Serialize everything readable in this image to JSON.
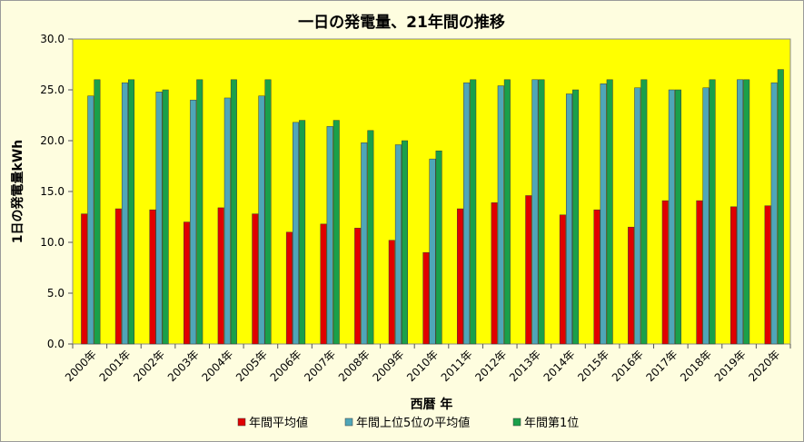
{
  "chart_data": {
    "type": "bar",
    "title": "一日の発電量、21年間の推移",
    "xlabel": "西暦 年",
    "ylabel": "1日の発電量kWh",
    "ylim": [
      0,
      30
    ],
    "yticks": [
      "0.0",
      "5.0",
      "10.0",
      "15.0",
      "20.0",
      "25.0",
      "30.0"
    ],
    "grid": false,
    "legend_position": "bottom",
    "plot_background": "#ffff00",
    "categories": [
      "2000年",
      "2001年",
      "2002年",
      "2003年",
      "2004年",
      "2005年",
      "2006年",
      "2007年",
      "2008年",
      "2009年",
      "2010年",
      "2011年",
      "2012年",
      "2013年",
      "2014年",
      "2015年",
      "2016年",
      "2017年",
      "2018年",
      "2019年",
      "2020年"
    ],
    "series": [
      {
        "name": "年間平均値",
        "color": "#e00000",
        "values": [
          12.8,
          13.3,
          13.2,
          12.0,
          13.4,
          12.8,
          11.0,
          11.8,
          11.4,
          10.2,
          9.0,
          13.3,
          13.9,
          14.6,
          12.7,
          13.2,
          11.5,
          14.1,
          14.1,
          13.5,
          13.6
        ]
      },
      {
        "name": "年間上位5位の平均値",
        "color": "#4fa6b8",
        "values": [
          24.4,
          25.7,
          24.8,
          24.0,
          24.2,
          24.4,
          21.8,
          21.4,
          19.8,
          19.6,
          18.2,
          25.7,
          25.4,
          26.0,
          24.6,
          25.6,
          25.2,
          25.0,
          25.2,
          26.0,
          25.7
        ]
      },
      {
        "name": "年間第1位",
        "color": "#1aa04a",
        "values": [
          26.0,
          26.0,
          25.0,
          26.0,
          26.0,
          26.0,
          22.0,
          22.0,
          21.0,
          20.0,
          19.0,
          26.0,
          26.0,
          26.0,
          25.0,
          26.0,
          26.0,
          25.0,
          26.0,
          26.0,
          27.0
        ]
      }
    ]
  }
}
